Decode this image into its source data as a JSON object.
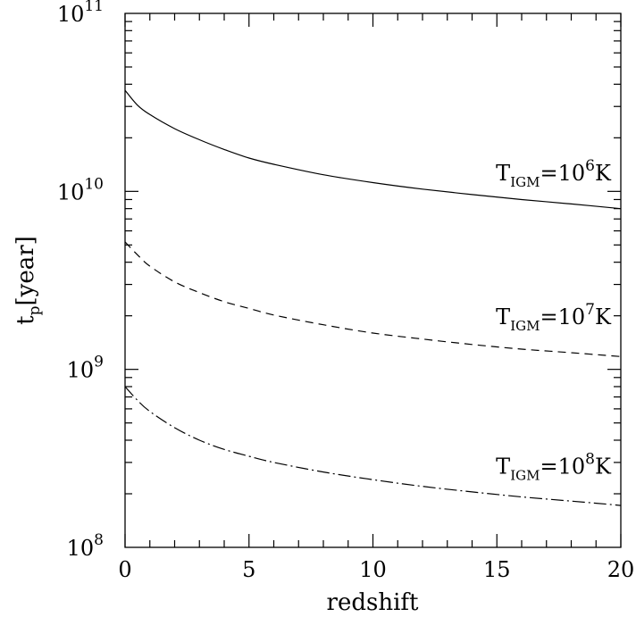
{
  "chart_data": {
    "type": "line",
    "title": "",
    "xlabel": "redshift",
    "ylabel": {
      "main": "t",
      "sub": "p",
      "rest": "[year]"
    },
    "xlim": [
      0,
      20
    ],
    "ylim": [
      100000000,
      100000000000
    ],
    "yscale": "log",
    "grid": false,
    "x_ticks": [
      {
        "value": 0,
        "label": "0"
      },
      {
        "value": 5,
        "label": "5"
      },
      {
        "value": 10,
        "label": "10"
      },
      {
        "value": 15,
        "label": "15"
      },
      {
        "value": 20,
        "label": "20"
      }
    ],
    "y_ticks": [
      {
        "value": 100000000,
        "base": "10",
        "exp": "8"
      },
      {
        "value": 1000000000,
        "base": "10",
        "exp": "9"
      },
      {
        "value": 10000000000,
        "base": "10",
        "exp": "10"
      },
      {
        "value": 100000000000,
        "base": "10",
        "exp": "11"
      }
    ],
    "series": [
      {
        "style": "solid",
        "label": {
          "pre": "T",
          "sub": "IGM",
          "mid": "=10",
          "sup": "6",
          "post": "K"
        },
        "label_anchor": {
          "x": 19.6,
          "y": 11500000000
        },
        "points": [
          [
            0,
            37000000000.0
          ],
          [
            0.5,
            30500000000.0
          ],
          [
            1,
            27000000000.0
          ],
          [
            2,
            22500000000.0
          ],
          [
            3,
            19500000000.0
          ],
          [
            4,
            17200000000.0
          ],
          [
            5,
            15400000000.0
          ],
          [
            6,
            14200000000.0
          ],
          [
            8,
            12400000000.0
          ],
          [
            10,
            11200000000.0
          ],
          [
            12,
            10300000000.0
          ],
          [
            14,
            9600000000.0
          ],
          [
            16,
            9000000000.0
          ],
          [
            18,
            8500000000.0
          ],
          [
            20,
            8000000000.0
          ]
        ]
      },
      {
        "style": "dashed",
        "label": {
          "pre": "T",
          "sub": "IGM",
          "mid": "=10",
          "sup": "7",
          "post": "K"
        },
        "label_anchor": {
          "x": 19.6,
          "y": 1800000000
        },
        "points": [
          [
            0,
            5200000000.0
          ],
          [
            0.5,
            4400000000.0
          ],
          [
            1,
            3800000000.0
          ],
          [
            2,
            3100000000.0
          ],
          [
            3,
            2700000000.0
          ],
          [
            4,
            2400000000.0
          ],
          [
            5,
            2200000000.0
          ],
          [
            6,
            2020000000.0
          ],
          [
            8,
            1780000000.0
          ],
          [
            10,
            1600000000.0
          ],
          [
            12,
            1480000000.0
          ],
          [
            14,
            1380000000.0
          ],
          [
            16,
            1300000000.0
          ],
          [
            18,
            1240000000.0
          ],
          [
            20,
            1180000000.0
          ]
        ]
      },
      {
        "style": "dashdot",
        "label": {
          "pre": "T",
          "sub": "IGM",
          "mid": "=10",
          "sup": "8",
          "post": "K"
        },
        "label_anchor": {
          "x": 19.6,
          "y": 260000000
        },
        "points": [
          [
            0,
            800000000.0
          ],
          [
            0.5,
            670000000.0
          ],
          [
            1,
            580000000.0
          ],
          [
            2,
            470000000.0
          ],
          [
            3,
            400000000.0
          ],
          [
            4,
            355000000.0
          ],
          [
            5,
            325000000.0
          ],
          [
            6,
            300000000.0
          ],
          [
            8,
            265000000.0
          ],
          [
            10,
            240000000.0
          ],
          [
            12,
            220000000.0
          ],
          [
            14,
            205000000.0
          ],
          [
            16,
            192000000.0
          ],
          [
            18,
            182000000.0
          ],
          [
            20,
            172000000.0
          ]
        ]
      }
    ]
  }
}
